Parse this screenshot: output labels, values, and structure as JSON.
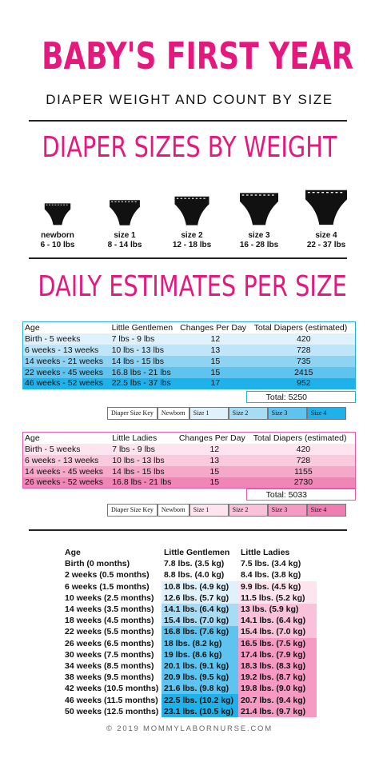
{
  "header": {
    "title": "BABY'S FIRST YEAR",
    "subtitle": "DIAPER WEIGHT AND COUNT BY SIZE"
  },
  "sizes_section": {
    "title": "DIAPER SIZES BY WEIGHT",
    "sizes": [
      {
        "name": "newborn",
        "range": "6 - 10 lbs"
      },
      {
        "name": "size 1",
        "range": "8 - 14 lbs"
      },
      {
        "name": "size 2",
        "range": "12 - 18 lbs"
      },
      {
        "name": "size 3",
        "range": "16 - 28 lbs"
      },
      {
        "name": "size 4",
        "range": "22 - 37 lbs"
      }
    ]
  },
  "estimates_section": {
    "title": "DAILY ESTIMATES PER SIZE"
  },
  "gentlemen_table": {
    "headers": [
      "Age",
      "Little Gentlemen",
      "Changes Per Day",
      "Total Diapers (estimated)"
    ],
    "rows": [
      [
        "Birth - 5 weeks",
        "7 lbs - 9 lbs",
        "12",
        "420"
      ],
      [
        "6 weeks - 13 weeks",
        "10 lbs - 13 lbs",
        "13",
        "728"
      ],
      [
        "14 weeks - 21 weeks",
        "14 lbs - 15 lbs",
        "15",
        "735"
      ],
      [
        "22 weeks - 45 weeks",
        "16.8 lbs - 21 lbs",
        "15",
        "2415"
      ],
      [
        "46 weeks - 52 weeks",
        "22.5 lbs - 37 lbs",
        "17",
        "952"
      ]
    ],
    "total": "Total: 5250"
  },
  "ladies_table": {
    "headers": [
      "Age",
      "Little Ladies",
      "Changes Per Day",
      "Total Diapers (estimated)"
    ],
    "rows": [
      [
        "Birth - 5 weeks",
        "7 lbs - 9 lbs",
        "12",
        "420"
      ],
      [
        "6 weeks - 13 weeks",
        "10 lbs - 13 lbs",
        "13",
        "728"
      ],
      [
        "14 weeks - 45 weeks",
        "14 lbs - 15 lbs",
        "15",
        "1155"
      ],
      [
        "26 weeks - 52 weeks",
        "16.8 lbs - 21 lbs",
        "15",
        "2730"
      ]
    ],
    "total": "Total: 5033"
  },
  "size_key": {
    "labels": [
      "Diaper Size Key",
      "Newborn",
      "Size 1",
      "Size 2",
      "Size 3",
      "Size 4"
    ],
    "blue_colors": [
      "#ffffff",
      "#ffffff",
      "#dff1fb",
      "#a8dcf5",
      "#5ec3ee",
      "#1fb1ea"
    ],
    "pink_colors": [
      "#ffffff",
      "#ffffff",
      "#fde4ef",
      "#f9c2da",
      "#f49ac3",
      "#ef7db2"
    ]
  },
  "weight_table": {
    "headers": [
      "Age",
      "Little Gentlemen",
      "Little Ladies"
    ],
    "rows": [
      [
        "Birth (0 months)",
        "7.8 lbs. (3.5 kg)",
        "7.5 lbs. (3.4 kg)"
      ],
      [
        "2 weeks (0.5 months)",
        "8.8 lbs. (4.0 kg)",
        "8.4 lbs. (3.8 kg)"
      ],
      [
        "6 weeks (1.5 months)",
        "10.8 lbs. (4.9 kg)",
        "9.9 lbs. (4.5 kg)"
      ],
      [
        "10 weeks (2.5 months)",
        "12.6 lbs. (5.7 kg)",
        "11.5 lbs. (5.2 kg)"
      ],
      [
        "14 weeks (3.5 months)",
        "14.1 lbs. (6.4 kg)",
        "13 lbs. (5.9 kg)"
      ],
      [
        "18 weeks (4.5 months)",
        "15.4 lbs. (7.0 kg)",
        "14.1 lbs. (6.4 kg)"
      ],
      [
        "22 weeks (5.5 months)",
        "16.8 lbs. (7.6 kg)",
        "15.4 lbs. (7.0 kg)"
      ],
      [
        "26 weeks (6.5 months)",
        "18 lbs. (8.2 kg)",
        "16.5 lbs. (7.5 kg)"
      ],
      [
        "30 weeks (7.5 months)",
        "19 lbs. (8.6 kg)",
        "17.4 lbs. (7.9 kg)"
      ],
      [
        "34 weeks (8.5 months)",
        "20.1 lbs. (9.1 kg)",
        "18.3 lbs. (8.3 kg)"
      ],
      [
        "38 weeks (9.5 months)",
        "20.9 lbs. (9.5 kg)",
        "19.2 lbs. (8.7 kg)"
      ],
      [
        "42 weeks (10.5 months)",
        "21.6 lbs. (9.8 kg)",
        "19.8 lbs. (9.0 kg)"
      ],
      [
        "46 weeks (11.5 months)",
        "22.5 lbs. (10.2 kg)",
        "20.7 lbs. (9.4 kg)"
      ],
      [
        "50 weeks (12.5 months)",
        "23.1 lbs. (10.5 kg)",
        "21.4 lbs. (9.7 kg)"
      ]
    ],
    "gentlemen_colors": [
      "#ffffff",
      "#ffffff",
      "#dff1fb",
      "#dff1fb",
      "#a8dcf5",
      "#a8dcf5",
      "#5ec3ee",
      "#5ec3ee",
      "#5ec3ee",
      "#5ec3ee",
      "#5ec3ee",
      "#5ec3ee",
      "#1fb1ea",
      "#1fb1ea"
    ],
    "ladies_colors": [
      "#ffffff",
      "#ffffff",
      "#fde4ef",
      "#fde4ef",
      "#f9c2da",
      "#f9c2da",
      "#f9c2da",
      "#f49ac3",
      "#f49ac3",
      "#f49ac3",
      "#f49ac3",
      "#f49ac3",
      "#f49ac3",
      "#f49ac3"
    ]
  },
  "footer": {
    "text": "© 2019 MOMMYLABORNURSE.COM"
  },
  "colors": {
    "accent_pink": "#e5197d",
    "blue_rows": [
      "#dff1fb",
      "#bfe6f8",
      "#8fd3f3",
      "#5ec3ee",
      "#1fb1ea"
    ],
    "pink_rows": [
      "#fde4ef",
      "#f9c9dd",
      "#f5a8ca",
      "#ef86b6"
    ]
  },
  "icons": [
    "diaper-icon"
  ]
}
